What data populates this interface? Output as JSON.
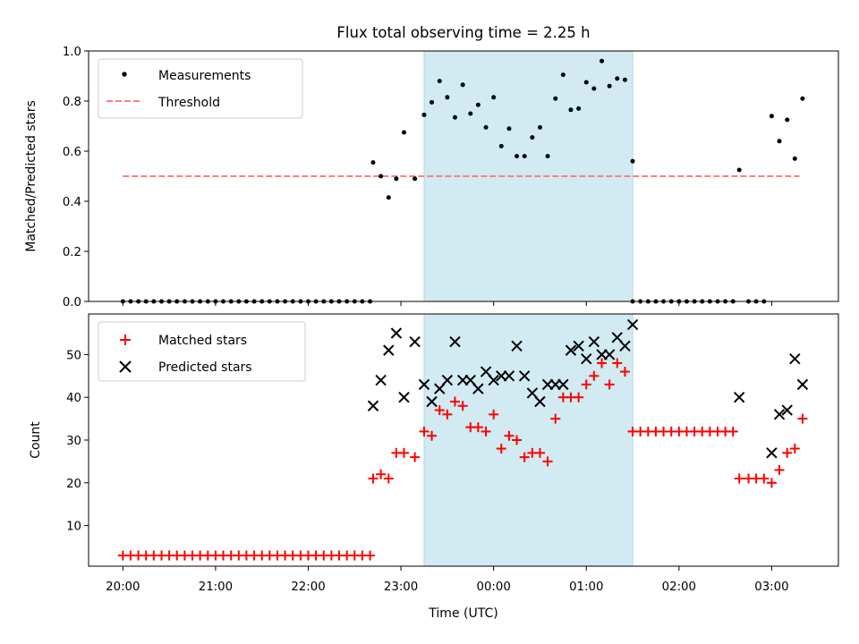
{
  "chart_data": [
    {
      "type": "scatter",
      "title": "Flux total observing time = 2.25 h",
      "ylabel": "Matched/Predicted stars",
      "xlabel": "",
      "ylim": [
        0,
        1.0
      ],
      "yticks": [
        "0.0",
        "0.2",
        "0.4",
        "0.6",
        "0.8",
        "1.0"
      ],
      "xlim_hours": [
        19.63,
        27.72
      ],
      "shaded_interval_hours": [
        23.25,
        25.5
      ],
      "shade_color": "#add8e6",
      "legend": {
        "placement": "top-left",
        "entries": [
          "Measurements",
          "Threshold"
        ]
      },
      "threshold": {
        "name": "Threshold",
        "value": 0.5,
        "x_range_hours": [
          20.0,
          27.3
        ],
        "color": "#ff7f7f",
        "style": "dashed"
      },
      "series": [
        {
          "name": "Measurements",
          "marker": "dot",
          "color": "#000000",
          "x_hours": [
            20.0,
            20.083,
            20.167,
            20.25,
            20.333,
            20.417,
            20.5,
            20.583,
            20.667,
            20.75,
            20.833,
            20.917,
            21.0,
            21.083,
            21.167,
            21.25,
            21.333,
            21.417,
            21.5,
            21.583,
            21.667,
            21.75,
            21.833,
            21.917,
            22.0,
            22.083,
            22.167,
            22.25,
            22.333,
            22.417,
            22.5,
            22.583,
            22.667,
            22.7,
            22.783,
            22.867,
            22.95,
            23.033,
            23.15,
            23.25,
            23.333,
            23.417,
            23.5,
            23.583,
            23.667,
            23.75,
            23.833,
            23.917,
            24.0,
            24.083,
            24.167,
            24.25,
            24.333,
            24.417,
            24.5,
            24.583,
            24.667,
            24.75,
            24.833,
            24.917,
            25.0,
            25.083,
            25.167,
            25.25,
            25.333,
            25.417,
            25.5,
            25.5,
            25.583,
            25.667,
            25.75,
            25.833,
            25.917,
            26.0,
            26.083,
            26.167,
            26.25,
            26.333,
            26.417,
            26.5,
            26.583,
            26.65,
            26.75,
            26.833,
            26.917,
            27.0,
            27.083,
            27.167,
            27.25,
            27.333
          ],
          "y": [
            0,
            0,
            0,
            0,
            0,
            0,
            0,
            0,
            0,
            0,
            0,
            0,
            0,
            0,
            0,
            0,
            0,
            0,
            0,
            0,
            0,
            0,
            0,
            0,
            0,
            0,
            0,
            0,
            0,
            0,
            0,
            0,
            0,
            0.555,
            0.5,
            0.415,
            0.49,
            0.675,
            0.49,
            0.745,
            0.795,
            0.88,
            0.815,
            0.735,
            0.865,
            0.75,
            0.785,
            0.695,
            0.815,
            0.62,
            0.69,
            0.58,
            0.58,
            0.655,
            0.695,
            0.58,
            0.81,
            0.905,
            0.765,
            0.77,
            0.875,
            0.85,
            0.96,
            0.86,
            0.89,
            0.885,
            0.56,
            0,
            0,
            0,
            0,
            0,
            0,
            0,
            0,
            0,
            0,
            0,
            0,
            0,
            0,
            0.525,
            0,
            0,
            0,
            0.74,
            0.64,
            0.725,
            0.57,
            0.81
          ]
        }
      ]
    },
    {
      "type": "scatter",
      "title": "",
      "ylabel": "Count",
      "xlabel": "Time (UTC)",
      "ylim": [
        0.5,
        59.5
      ],
      "yticks": [
        "10",
        "20",
        "30",
        "40",
        "50"
      ],
      "xlim_hours": [
        19.63,
        27.72
      ],
      "xticks": [
        "20:00",
        "21:00",
        "22:00",
        "23:00",
        "00:00",
        "01:00",
        "02:00",
        "03:00"
      ],
      "shaded_interval_hours": [
        23.25,
        25.5
      ],
      "shade_color": "#add8e6",
      "legend": {
        "placement": "top-left",
        "entries": [
          "Matched stars",
          "Predicted stars"
        ]
      },
      "series": [
        {
          "name": "Matched stars",
          "marker": "plus",
          "color": "#ff0000",
          "x_hours": [
            20.0,
            20.083,
            20.167,
            20.25,
            20.333,
            20.417,
            20.5,
            20.583,
            20.667,
            20.75,
            20.833,
            20.917,
            21.0,
            21.083,
            21.167,
            21.25,
            21.333,
            21.417,
            21.5,
            21.583,
            21.667,
            21.75,
            21.833,
            21.917,
            22.0,
            22.083,
            22.167,
            22.25,
            22.333,
            22.417,
            22.5,
            22.583,
            22.667,
            22.7,
            22.783,
            22.867,
            22.95,
            23.033,
            23.15,
            23.25,
            23.333,
            23.417,
            23.5,
            23.583,
            23.667,
            23.75,
            23.833,
            23.917,
            24.0,
            24.083,
            24.167,
            24.25,
            24.333,
            24.417,
            24.5,
            24.583,
            24.667,
            24.75,
            24.833,
            24.917,
            25.0,
            25.083,
            25.167,
            25.25,
            25.333,
            25.417,
            25.5,
            25.583,
            25.667,
            25.75,
            25.833,
            25.917,
            26.0,
            26.083,
            26.167,
            26.25,
            26.333,
            26.417,
            26.5,
            26.583,
            26.65,
            26.75,
            26.833,
            26.917,
            27.0,
            27.083,
            27.167,
            27.25,
            27.333
          ],
          "y": [
            3,
            3,
            3,
            3,
            3,
            3,
            3,
            3,
            3,
            3,
            3,
            3,
            3,
            3,
            3,
            3,
            3,
            3,
            3,
            3,
            3,
            3,
            3,
            3,
            3,
            3,
            3,
            3,
            3,
            3,
            3,
            3,
            3,
            21,
            22,
            21,
            27,
            27,
            26,
            32,
            31,
            37,
            36,
            39,
            38,
            33,
            33,
            32,
            36,
            28,
            31,
            30,
            26,
            27,
            27,
            25,
            35,
            40,
            40,
            40,
            43,
            45,
            48,
            43,
            48,
            46,
            32,
            32,
            32,
            32,
            32,
            32,
            32,
            32,
            32,
            32,
            32,
            32,
            32,
            32,
            21,
            21,
            21,
            21,
            20,
            23,
            27,
            28,
            35
          ]
        },
        {
          "name": "Predicted stars",
          "marker": "x",
          "color": "#000000",
          "x_hours": [
            22.7,
            22.783,
            22.867,
            22.95,
            23.033,
            23.15,
            23.25,
            23.333,
            23.417,
            23.5,
            23.583,
            23.667,
            23.75,
            23.833,
            23.917,
            24.0,
            24.083,
            24.167,
            24.25,
            24.333,
            24.417,
            24.5,
            24.583,
            24.667,
            24.75,
            24.833,
            24.917,
            25.0,
            25.083,
            25.167,
            25.25,
            25.333,
            25.417,
            25.5,
            26.65,
            27.0,
            27.083,
            27.167,
            27.25,
            27.333
          ],
          "y": [
            38,
            44,
            51,
            55,
            40,
            53,
            43,
            39,
            42,
            44,
            53,
            44,
            44,
            42,
            46,
            44,
            45,
            45,
            52,
            45,
            41,
            39,
            43,
            43,
            43,
            51,
            52,
            49,
            53,
            50,
            50,
            54,
            52,
            57,
            40,
            27,
            36,
            37,
            49,
            43
          ]
        }
      ]
    }
  ]
}
